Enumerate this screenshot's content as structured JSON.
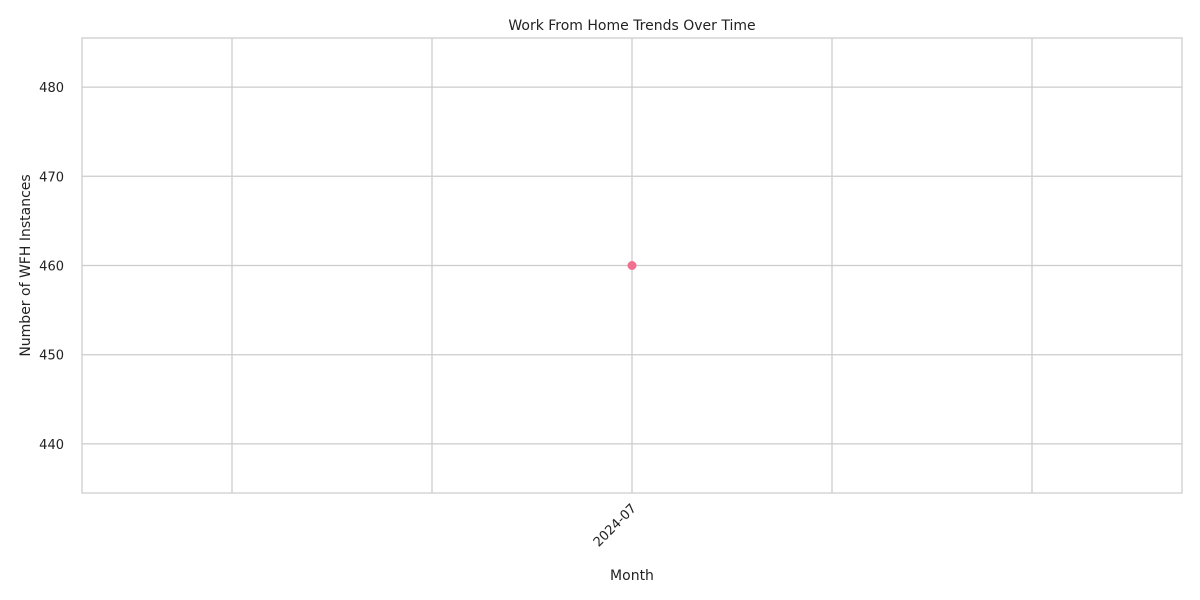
{
  "chart_data": {
    "type": "line",
    "title": "Work From Home Trends Over Time",
    "xlabel": "Month",
    "ylabel": "Number of WFH Instances",
    "x_tick_labels": [
      "2024-07"
    ],
    "y_ticks": [
      440,
      450,
      460,
      470,
      480
    ],
    "ylim": [
      434.5,
      485.5
    ],
    "grid": true,
    "series": [
      {
        "x": [
          "2024-07"
        ],
        "values": [
          460
        ],
        "color": "#f07090",
        "marker": "circle"
      }
    ]
  }
}
